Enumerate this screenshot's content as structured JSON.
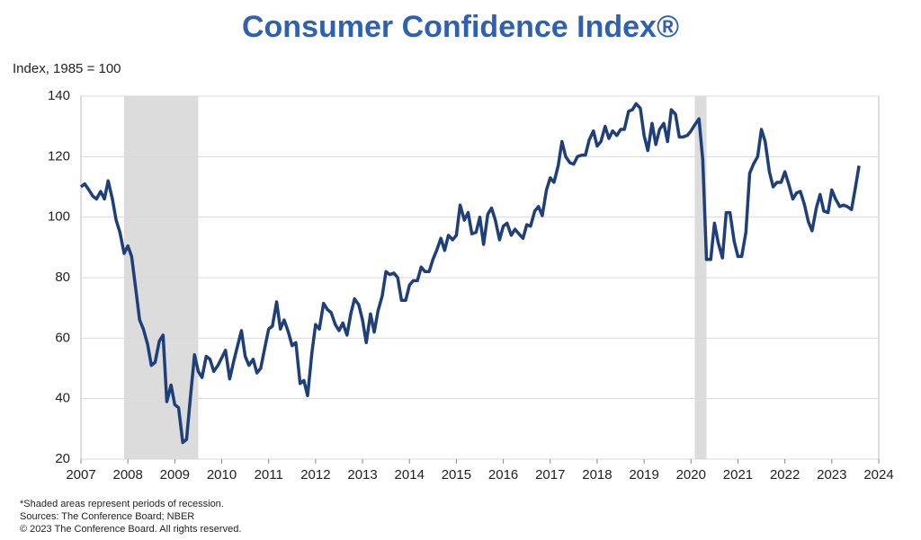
{
  "chart_data": {
    "type": "line",
    "title": "Consumer Confidence Index®",
    "y_axis_label": "Index, 1985 = 100",
    "notes": [
      "*Shaded areas represent periods of recession.",
      "Sources: The Conference Board; NBER",
      "© 2023 The Conference Board. All rights reserved."
    ],
    "color": "#1f3f7a",
    "recession_color": "#dcdcdc",
    "recessions": [
      [
        2007.92,
        2009.5
      ],
      [
        2020.08,
        2020.33
      ]
    ],
    "xlim": [
      2007,
      2024
    ],
    "xticks": [
      2007,
      2008,
      2009,
      2010,
      2011,
      2012,
      2013,
      2014,
      2015,
      2016,
      2017,
      2018,
      2019,
      2020,
      2021,
      2022,
      2023,
      2024
    ],
    "ylim": [
      20,
      140
    ],
    "yticks": [
      20,
      40,
      60,
      80,
      100,
      120,
      140
    ],
    "grid": true,
    "x": [
      2007.0,
      2007.08,
      2007.17,
      2007.25,
      2007.33,
      2007.42,
      2007.5,
      2007.58,
      2007.67,
      2007.75,
      2007.83,
      2007.92,
      2008.0,
      2008.08,
      2008.17,
      2008.25,
      2008.33,
      2008.42,
      2008.5,
      2008.58,
      2008.67,
      2008.75,
      2008.83,
      2008.92,
      2009.0,
      2009.08,
      2009.17,
      2009.25,
      2009.33,
      2009.42,
      2009.5,
      2009.58,
      2009.67,
      2009.75,
      2009.83,
      2009.92,
      2010.0,
      2010.08,
      2010.17,
      2010.25,
      2010.33,
      2010.42,
      2010.5,
      2010.58,
      2010.67,
      2010.75,
      2010.83,
      2010.92,
      2011.0,
      2011.08,
      2011.17,
      2011.25,
      2011.33,
      2011.42,
      2011.5,
      2011.58,
      2011.67,
      2011.75,
      2011.83,
      2011.92,
      2012.0,
      2012.08,
      2012.17,
      2012.25,
      2012.33,
      2012.42,
      2012.5,
      2012.58,
      2012.67,
      2012.75,
      2012.83,
      2012.92,
      2013.0,
      2013.08,
      2013.17,
      2013.25,
      2013.33,
      2013.42,
      2013.5,
      2013.58,
      2013.67,
      2013.75,
      2013.83,
      2013.92,
      2014.0,
      2014.08,
      2014.17,
      2014.25,
      2014.33,
      2014.42,
      2014.5,
      2014.58,
      2014.67,
      2014.75,
      2014.83,
      2014.92,
      2015.0,
      2015.08,
      2015.17,
      2015.25,
      2015.33,
      2015.42,
      2015.5,
      2015.58,
      2015.67,
      2015.75,
      2015.83,
      2015.92,
      2016.0,
      2016.08,
      2016.17,
      2016.25,
      2016.33,
      2016.42,
      2016.5,
      2016.58,
      2016.67,
      2016.75,
      2016.83,
      2016.92,
      2017.0,
      2017.08,
      2017.17,
      2017.25,
      2017.33,
      2017.42,
      2017.5,
      2017.58,
      2017.67,
      2017.75,
      2017.83,
      2017.92,
      2018.0,
      2018.08,
      2018.17,
      2018.25,
      2018.33,
      2018.42,
      2018.5,
      2018.58,
      2018.67,
      2018.75,
      2018.83,
      2018.92,
      2019.0,
      2019.08,
      2019.17,
      2019.25,
      2019.33,
      2019.42,
      2019.5,
      2019.58,
      2019.67,
      2019.75,
      2019.83,
      2019.92,
      2020.0,
      2020.08,
      2020.17,
      2020.25,
      2020.33,
      2020.42,
      2020.5,
      2020.58,
      2020.67,
      2020.75,
      2020.83,
      2020.92,
      2021.0,
      2021.08,
      2021.17,
      2021.25,
      2021.33,
      2021.42,
      2021.5,
      2021.58,
      2021.67,
      2021.75,
      2021.83,
      2021.92,
      2022.0,
      2022.08,
      2022.17,
      2022.25,
      2022.33,
      2022.42,
      2022.5,
      2022.58,
      2022.67,
      2022.75,
      2022.83,
      2022.92,
      2023.0,
      2023.08,
      2023.17,
      2023.25,
      2023.33,
      2023.42,
      2023.5,
      2023.58
    ],
    "values": [
      110,
      111,
      109,
      107,
      106,
      108.5,
      106,
      112,
      106,
      99,
      95,
      88,
      90.5,
      87,
      76,
      66,
      63,
      58,
      51,
      52,
      59,
      61,
      39,
      44.5,
      38,
      37,
      25.5,
      26.5,
      40,
      54.5,
      49,
      47,
      54,
      53,
      49,
      51,
      53.5,
      56,
      46.5,
      52,
      57,
      62.5,
      54,
      51,
      53,
      48.5,
      50,
      57,
      63,
      64,
      72,
      63,
      66,
      62,
      57.5,
      58.5,
      45,
      46,
      41,
      55,
      64.5,
      63,
      71.5,
      69.5,
      68.5,
      64.5,
      62.5,
      65,
      61,
      68,
      73,
      71,
      66,
      58.5,
      68,
      62,
      69,
      74,
      82,
      81,
      81.5,
      80,
      72.5,
      72.5,
      77.5,
      79,
      79,
      83.5,
      82,
      82,
      86,
      89,
      93,
      89,
      94,
      92.5,
      94,
      104,
      99,
      101.5,
      94.5,
      95,
      100,
      91,
      101,
      103,
      99,
      92.5,
      97,
      98,
      94,
      96,
      94.5,
      93,
      97.5,
      97,
      102,
      103.5,
      100.5,
      109,
      113,
      111.5,
      117,
      125,
      120,
      118,
      117.5,
      120,
      120.5,
      120.5,
      125.5,
      128.5,
      123.5,
      125,
      130,
      126,
      128.5,
      127,
      129,
      129,
      135,
      135.5,
      137.5,
      136,
      127,
      122,
      131,
      124,
      129,
      131,
      125,
      135.5,
      134,
      126.5,
      126.5,
      127,
      128.5,
      130.5,
      132.5,
      119,
      86,
      86,
      98,
      91.5,
      86.5,
      101.5,
      101.5,
      92,
      87,
      87,
      95,
      114.5,
      117.5,
      120,
      129,
      125,
      115,
      110,
      111.5,
      111.5,
      115,
      111,
      106,
      108,
      108.5,
      104,
      98.5,
      95.5,
      103,
      107.5,
      102,
      101.5,
      109,
      106,
      103.5,
      104,
      103.5,
      102.5,
      109.5,
      117
    ]
  }
}
